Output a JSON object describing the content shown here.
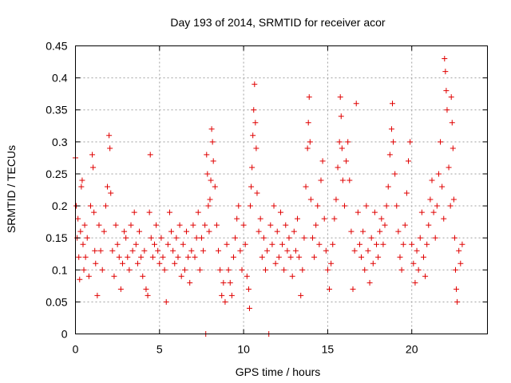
{
  "chart_data": {
    "type": "scatter",
    "title": "Day 193 of 2014, SRMTID for receiver acor",
    "xlabel": "GPS time / hours",
    "ylabel": "SRMTID / TECUs",
    "xlim": [
      0,
      24.5
    ],
    "ylim": [
      0,
      0.45
    ],
    "x_ticks": [
      0,
      5,
      10,
      15,
      20
    ],
    "y_ticks": [
      0,
      0.05,
      0.1,
      0.15,
      0.2,
      0.25,
      0.3,
      0.35,
      0.4,
      0.45
    ],
    "x_tick_labels": [
      "0",
      "5",
      "10",
      "15",
      "20"
    ],
    "y_tick_labels": [
      "0",
      "0.05",
      "0.1",
      "0.15",
      "0.2",
      "0.25",
      "0.3",
      "0.35",
      "0.4",
      "0.45"
    ],
    "grid": true,
    "marker": "+",
    "series": [
      {
        "name": "SRMTID",
        "color": "#e00000",
        "points": [
          [
            0.0,
            0.275
          ],
          [
            0.05,
            0.2
          ],
          [
            0.1,
            0.15
          ],
          [
            0.15,
            0.18
          ],
          [
            0.2,
            0.12
          ],
          [
            0.25,
            0.085
          ],
          [
            0.3,
            0.16
          ],
          [
            0.35,
            0.23
          ],
          [
            0.4,
            0.24
          ],
          [
            0.45,
            0.14
          ],
          [
            0.5,
            0.1
          ],
          [
            0.55,
            0.17
          ],
          [
            0.6,
            0.12
          ],
          [
            0.7,
            0.15
          ],
          [
            0.8,
            0.09
          ],
          [
            0.9,
            0.2
          ],
          [
            1.0,
            0.28
          ],
          [
            1.05,
            0.26
          ],
          [
            1.1,
            0.19
          ],
          [
            1.15,
            0.13
          ],
          [
            1.2,
            0.11
          ],
          [
            1.3,
            0.06
          ],
          [
            1.4,
            0.17
          ],
          [
            1.5,
            0.13
          ],
          [
            1.6,
            0.1
          ],
          [
            1.7,
            0.16
          ],
          [
            1.8,
            0.2
          ],
          [
            1.9,
            0.23
          ],
          [
            2.0,
            0.31
          ],
          [
            2.05,
            0.29
          ],
          [
            2.1,
            0.22
          ],
          [
            2.2,
            0.13
          ],
          [
            2.3,
            0.09
          ],
          [
            2.4,
            0.17
          ],
          [
            2.5,
            0.14
          ],
          [
            2.6,
            0.12
          ],
          [
            2.7,
            0.07
          ],
          [
            2.8,
            0.11
          ],
          [
            2.9,
            0.16
          ],
          [
            3.0,
            0.15
          ],
          [
            3.1,
            0.12
          ],
          [
            3.2,
            0.1
          ],
          [
            3.3,
            0.17
          ],
          [
            3.4,
            0.13
          ],
          [
            3.5,
            0.19
          ],
          [
            3.6,
            0.14
          ],
          [
            3.7,
            0.11
          ],
          [
            3.8,
            0.16
          ],
          [
            3.9,
            0.12
          ],
          [
            4.0,
            0.09
          ],
          [
            4.1,
            0.13
          ],
          [
            4.2,
            0.07
          ],
          [
            4.3,
            0.06
          ],
          [
            4.4,
            0.19
          ],
          [
            4.45,
            0.28
          ],
          [
            4.5,
            0.15
          ],
          [
            4.6,
            0.12
          ],
          [
            4.7,
            0.14
          ],
          [
            4.8,
            0.17
          ],
          [
            4.9,
            0.13
          ],
          [
            5.0,
            0.11
          ],
          [
            5.1,
            0.15
          ],
          [
            5.2,
            0.12
          ],
          [
            5.3,
            0.1
          ],
          [
            5.4,
            0.05
          ],
          [
            5.5,
            0.14
          ],
          [
            5.6,
            0.19
          ],
          [
            5.7,
            0.16
          ],
          [
            5.8,
            0.13
          ],
          [
            5.9,
            0.11
          ],
          [
            6.0,
            0.15
          ],
          [
            6.1,
            0.12
          ],
          [
            6.2,
            0.17
          ],
          [
            6.3,
            0.09
          ],
          [
            6.4,
            0.14
          ],
          [
            6.5,
            0.1
          ],
          [
            6.6,
            0.16
          ],
          [
            6.7,
            0.12
          ],
          [
            6.8,
            0.08
          ],
          [
            6.9,
            0.13
          ],
          [
            7.0,
            0.17
          ],
          [
            7.1,
            0.12
          ],
          [
            7.2,
            0.15
          ],
          [
            7.3,
            0.19
          ],
          [
            7.4,
            0.1
          ],
          [
            7.5,
            0.15
          ],
          [
            7.6,
            0.13
          ],
          [
            7.7,
            0.17
          ],
          [
            7.75,
            0.0
          ],
          [
            7.8,
            0.28
          ],
          [
            7.85,
            0.25
          ],
          [
            7.9,
            0.2
          ],
          [
            7.95,
            0.16
          ],
          [
            8.0,
            0.21
          ],
          [
            8.05,
            0.24
          ],
          [
            8.1,
            0.32
          ],
          [
            8.15,
            0.3
          ],
          [
            8.2,
            0.27
          ],
          [
            8.3,
            0.23
          ],
          [
            8.4,
            0.17
          ],
          [
            8.5,
            0.13
          ],
          [
            8.6,
            0.1
          ],
          [
            8.7,
            0.06
          ],
          [
            8.8,
            0.08
          ],
          [
            8.9,
            0.05
          ],
          [
            9.0,
            0.14
          ],
          [
            9.1,
            0.1
          ],
          [
            9.2,
            0.08
          ],
          [
            9.3,
            0.06
          ],
          [
            9.4,
            0.12
          ],
          [
            9.5,
            0.15
          ],
          [
            9.6,
            0.18
          ],
          [
            9.7,
            0.2
          ],
          [
            9.8,
            0.13
          ],
          [
            9.9,
            0.1
          ],
          [
            10.0,
            0.17
          ],
          [
            10.1,
            0.14
          ],
          [
            10.2,
            0.09
          ],
          [
            10.3,
            0.07
          ],
          [
            10.35,
            0.04
          ],
          [
            10.4,
            0.2
          ],
          [
            10.45,
            0.23
          ],
          [
            10.5,
            0.26
          ],
          [
            10.55,
            0.31
          ],
          [
            10.6,
            0.35
          ],
          [
            10.65,
            0.39
          ],
          [
            10.7,
            0.33
          ],
          [
            10.75,
            0.29
          ],
          [
            10.8,
            0.22
          ],
          [
            10.9,
            0.16
          ],
          [
            11.0,
            0.18
          ],
          [
            11.1,
            0.12
          ],
          [
            11.2,
            0.15
          ],
          [
            11.3,
            0.1
          ],
          [
            11.4,
            0.13
          ],
          [
            11.5,
            0.0
          ],
          [
            11.6,
            0.17
          ],
          [
            11.7,
            0.14
          ],
          [
            11.8,
            0.2
          ],
          [
            11.9,
            0.11
          ],
          [
            12.0,
            0.16
          ],
          [
            12.1,
            0.12
          ],
          [
            12.2,
            0.19
          ],
          [
            12.3,
            0.14
          ],
          [
            12.4,
            0.1
          ],
          [
            12.5,
            0.17
          ],
          [
            12.6,
            0.13
          ],
          [
            12.7,
            0.15
          ],
          [
            12.8,
            0.12
          ],
          [
            12.9,
            0.09
          ],
          [
            13.0,
            0.16
          ],
          [
            13.1,
            0.13
          ],
          [
            13.2,
            0.18
          ],
          [
            13.3,
            0.12
          ],
          [
            13.4,
            0.06
          ],
          [
            13.5,
            0.1
          ],
          [
            13.6,
            0.15
          ],
          [
            13.7,
            0.23
          ],
          [
            13.8,
            0.29
          ],
          [
            13.85,
            0.33
          ],
          [
            13.9,
            0.37
          ],
          [
            13.95,
            0.3
          ],
          [
            14.0,
            0.21
          ],
          [
            14.1,
            0.15
          ],
          [
            14.2,
            0.12
          ],
          [
            14.3,
            0.17
          ],
          [
            14.4,
            0.2
          ],
          [
            14.5,
            0.14
          ],
          [
            14.6,
            0.24
          ],
          [
            14.7,
            0.27
          ],
          [
            14.8,
            0.18
          ],
          [
            14.9,
            0.13
          ],
          [
            15.0,
            0.1
          ],
          [
            15.1,
            0.07
          ],
          [
            15.2,
            0.11
          ],
          [
            15.3,
            0.14
          ],
          [
            15.4,
            0.18
          ],
          [
            15.5,
            0.21
          ],
          [
            15.6,
            0.26
          ],
          [
            15.7,
            0.3
          ],
          [
            15.75,
            0.37
          ],
          [
            15.8,
            0.34
          ],
          [
            15.85,
            0.29
          ],
          [
            15.9,
            0.24
          ],
          [
            16.0,
            0.2
          ],
          [
            16.1,
            0.27
          ],
          [
            16.2,
            0.3
          ],
          [
            16.3,
            0.24
          ],
          [
            16.4,
            0.16
          ],
          [
            16.5,
            0.07
          ],
          [
            16.6,
            0.13
          ],
          [
            16.7,
            0.36
          ],
          [
            16.8,
            0.19
          ],
          [
            16.9,
            0.14
          ],
          [
            17.0,
            0.12
          ],
          [
            17.1,
            0.16
          ],
          [
            17.2,
            0.1
          ],
          [
            17.3,
            0.2
          ],
          [
            17.4,
            0.13
          ],
          [
            17.5,
            0.08
          ],
          [
            17.6,
            0.15
          ],
          [
            17.7,
            0.11
          ],
          [
            17.8,
            0.19
          ],
          [
            17.9,
            0.14
          ],
          [
            18.0,
            0.12
          ],
          [
            18.1,
            0.16
          ],
          [
            18.2,
            0.18
          ],
          [
            18.3,
            0.14
          ],
          [
            18.4,
            0.17
          ],
          [
            18.5,
            0.2
          ],
          [
            18.6,
            0.23
          ],
          [
            18.7,
            0.28
          ],
          [
            18.8,
            0.32
          ],
          [
            18.85,
            0.36
          ],
          [
            18.9,
            0.3
          ],
          [
            19.0,
            0.25
          ],
          [
            19.1,
            0.2
          ],
          [
            19.2,
            0.16
          ],
          [
            19.3,
            0.12
          ],
          [
            19.4,
            0.1
          ],
          [
            19.5,
            0.14
          ],
          [
            19.6,
            0.17
          ],
          [
            19.7,
            0.22
          ],
          [
            19.8,
            0.27
          ],
          [
            19.9,
            0.3
          ],
          [
            20.0,
            0.14
          ],
          [
            20.1,
            0.11
          ],
          [
            20.2,
            0.08
          ],
          [
            20.3,
            0.13
          ],
          [
            20.4,
            0.1
          ],
          [
            20.5,
            0.15
          ],
          [
            20.6,
            0.19
          ],
          [
            20.7,
            0.12
          ],
          [
            20.8,
            0.09
          ],
          [
            20.9,
            0.14
          ],
          [
            21.0,
            0.17
          ],
          [
            21.1,
            0.21
          ],
          [
            21.2,
            0.24
          ],
          [
            21.3,
            0.19
          ],
          [
            21.4,
            0.15
          ],
          [
            21.5,
            0.2
          ],
          [
            21.6,
            0.25
          ],
          [
            21.7,
            0.3
          ],
          [
            21.8,
            0.23
          ],
          [
            21.9,
            0.18
          ],
          [
            21.95,
            0.43
          ],
          [
            22.0,
            0.41
          ],
          [
            22.05,
            0.38
          ],
          [
            22.1,
            0.35
          ],
          [
            22.2,
            0.26
          ],
          [
            22.3,
            0.2
          ],
          [
            22.35,
            0.37
          ],
          [
            22.4,
            0.33
          ],
          [
            22.45,
            0.29
          ],
          [
            22.5,
            0.21
          ],
          [
            22.55,
            0.15
          ],
          [
            22.6,
            0.1
          ],
          [
            22.65,
            0.07
          ],
          [
            22.7,
            0.05
          ],
          [
            22.8,
            0.13
          ],
          [
            22.9,
            0.11
          ],
          [
            23.0,
            0.14
          ]
        ]
      }
    ]
  }
}
